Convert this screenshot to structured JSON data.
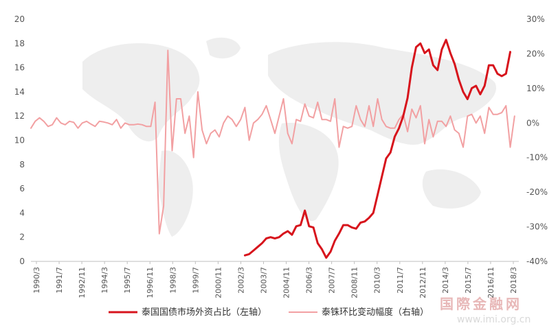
{
  "chart_data": {
    "type": "line",
    "title": "",
    "x_ticks": [
      "1990/3",
      "1991/7",
      "1992/11",
      "1994/3",
      "1995/7",
      "1996/11",
      "1998/3",
      "1999/7",
      "2000/11",
      "2002/3",
      "2003/7",
      "2004/11",
      "2006/3",
      "2007/7",
      "2008/11",
      "2010/3",
      "2011/7",
      "2012/11",
      "2014/3",
      "2015/7",
      "2016/11",
      "2018/3"
    ],
    "y_left": {
      "min": 0,
      "max": 20,
      "ticks": [
        "0",
        "2",
        "4",
        "6",
        "8",
        "10",
        "12",
        "14",
        "16",
        "18",
        "20"
      ]
    },
    "y_right": {
      "min": -40,
      "max": 30,
      "ticks": [
        "-40%",
        "-30%",
        "-20%",
        "-10%",
        "0%",
        "10%",
        "20%",
        "30%"
      ]
    },
    "series": [
      {
        "name": "泰国国债市场外资占比（左轴）",
        "axis": "left",
        "color": "#d7141c",
        "values": [
          [
            2002.75,
            0.5
          ],
          [
            2003.0,
            0.6
          ],
          [
            2003.25,
            0.9
          ],
          [
            2003.5,
            1.2
          ],
          [
            2003.75,
            1.5
          ],
          [
            2004.0,
            1.9
          ],
          [
            2004.25,
            2.0
          ],
          [
            2004.5,
            1.9
          ],
          [
            2004.75,
            2.0
          ],
          [
            2005.0,
            2.3
          ],
          [
            2005.25,
            2.5
          ],
          [
            2005.5,
            2.2
          ],
          [
            2005.75,
            2.9
          ],
          [
            2006.0,
            3.0
          ],
          [
            2006.25,
            4.2
          ],
          [
            2006.5,
            2.9
          ],
          [
            2006.75,
            2.8
          ],
          [
            2007.0,
            1.5
          ],
          [
            2007.25,
            1.0
          ],
          [
            2007.5,
            0.3
          ],
          [
            2007.75,
            0.8
          ],
          [
            2008.0,
            1.7
          ],
          [
            2008.25,
            2.3
          ],
          [
            2008.5,
            3.0
          ],
          [
            2008.75,
            3.0
          ],
          [
            2009.0,
            2.8
          ],
          [
            2009.25,
            2.7
          ],
          [
            2009.5,
            3.2
          ],
          [
            2009.75,
            3.3
          ],
          [
            2010.0,
            3.6
          ],
          [
            2010.25,
            4.0
          ],
          [
            2010.5,
            5.5
          ],
          [
            2010.75,
            7.0
          ],
          [
            2011.0,
            8.5
          ],
          [
            2011.25,
            9.0
          ],
          [
            2011.5,
            10.3
          ],
          [
            2011.75,
            11.0
          ],
          [
            2012.0,
            12.0
          ],
          [
            2012.25,
            13.5
          ],
          [
            2012.5,
            16.0
          ],
          [
            2012.75,
            17.7
          ],
          [
            2013.0,
            18.0
          ],
          [
            2013.25,
            17.2
          ],
          [
            2013.5,
            17.5
          ],
          [
            2013.75,
            16.2
          ],
          [
            2014.0,
            15.8
          ],
          [
            2014.25,
            17.5
          ],
          [
            2014.5,
            18.3
          ],
          [
            2014.75,
            17.2
          ],
          [
            2015.0,
            16.3
          ],
          [
            2015.25,
            15.0
          ],
          [
            2015.5,
            14.0
          ],
          [
            2015.75,
            13.4
          ],
          [
            2016.0,
            14.3
          ],
          [
            2016.25,
            14.5
          ],
          [
            2016.5,
            13.8
          ],
          [
            2016.75,
            14.5
          ],
          [
            2017.0,
            16.2
          ],
          [
            2017.25,
            16.2
          ],
          [
            2017.5,
            15.5
          ],
          [
            2017.75,
            15.3
          ],
          [
            2018.0,
            15.5
          ],
          [
            2018.25,
            17.3
          ]
        ]
      },
      {
        "name": "泰铢环比变动幅度（右轴）",
        "axis": "right",
        "color": "#f2a0a2",
        "values": [
          [
            1990.25,
            -1.5
          ],
          [
            1990.5,
            0.5
          ],
          [
            1990.75,
            1.5
          ],
          [
            1991.0,
            0.5
          ],
          [
            1991.25,
            -1.0
          ],
          [
            1991.5,
            -0.5
          ],
          [
            1991.75,
            1.5
          ],
          [
            1992.0,
            0.0
          ],
          [
            1992.25,
            -0.5
          ],
          [
            1992.5,
            0.5
          ],
          [
            1992.75,
            0.2
          ],
          [
            1993.0,
            -1.5
          ],
          [
            1993.25,
            0.0
          ],
          [
            1993.5,
            0.5
          ],
          [
            1993.75,
            -0.3
          ],
          [
            1994.0,
            -1.0
          ],
          [
            1994.25,
            0.5
          ],
          [
            1994.5,
            0.3
          ],
          [
            1994.75,
            0.0
          ],
          [
            1995.0,
            -0.5
          ],
          [
            1995.25,
            1.0
          ],
          [
            1995.5,
            -1.5
          ],
          [
            1995.75,
            0.0
          ],
          [
            1996.0,
            -0.5
          ],
          [
            1996.25,
            -0.5
          ],
          [
            1996.5,
            -0.3
          ],
          [
            1996.75,
            -0.5
          ],
          [
            1997.0,
            -1.0
          ],
          [
            1997.25,
            -1.0
          ],
          [
            1997.5,
            6.0
          ],
          [
            1997.75,
            -32.0
          ],
          [
            1998.0,
            -24.0
          ],
          [
            1998.25,
            21.0
          ],
          [
            1998.5,
            -8.0
          ],
          [
            1998.75,
            7.0
          ],
          [
            1999.0,
            7.0
          ],
          [
            1999.25,
            -3.0
          ],
          [
            1999.5,
            2.0
          ],
          [
            1999.75,
            -10.0
          ],
          [
            2000.0,
            9.0
          ],
          [
            2000.25,
            -2.0
          ],
          [
            2000.5,
            -6.0
          ],
          [
            2000.75,
            -3.0
          ],
          [
            2001.0,
            -2.0
          ],
          [
            2001.25,
            -4.0
          ],
          [
            2001.5,
            0.0
          ],
          [
            2001.75,
            2.0
          ],
          [
            2002.0,
            1.0
          ],
          [
            2002.25,
            -1.0
          ],
          [
            2002.5,
            1.0
          ],
          [
            2002.75,
            4.5
          ],
          [
            2003.0,
            -5.0
          ],
          [
            2003.25,
            0.0
          ],
          [
            2003.5,
            1.0
          ],
          [
            2003.75,
            2.5
          ],
          [
            2004.0,
            5.0
          ],
          [
            2004.25,
            1.0
          ],
          [
            2004.5,
            -3.0
          ],
          [
            2004.75,
            2.0
          ],
          [
            2005.0,
            7.0
          ],
          [
            2005.25,
            -3.0
          ],
          [
            2005.5,
            -6.0
          ],
          [
            2005.75,
            1.0
          ],
          [
            2006.0,
            0.5
          ],
          [
            2006.25,
            5.5
          ],
          [
            2006.5,
            2.0
          ],
          [
            2006.75,
            1.5
          ],
          [
            2007.0,
            6.0
          ],
          [
            2007.25,
            1.0
          ],
          [
            2007.5,
            1.0
          ],
          [
            2007.75,
            0.5
          ],
          [
            2008.0,
            7.0
          ],
          [
            2008.25,
            -7.0
          ],
          [
            2008.5,
            -1.0
          ],
          [
            2008.75,
            -1.5
          ],
          [
            2009.0,
            -1.0
          ],
          [
            2009.25,
            5.0
          ],
          [
            2009.5,
            1.0
          ],
          [
            2009.75,
            -1.0
          ],
          [
            2010.0,
            5.0
          ],
          [
            2010.25,
            -1.0
          ],
          [
            2010.5,
            7.0
          ],
          [
            2010.75,
            1.0
          ],
          [
            2011.0,
            -1.0
          ],
          [
            2011.25,
            -1.5
          ],
          [
            2011.5,
            -1.5
          ],
          [
            2011.75,
            1.0
          ],
          [
            2012.0,
            2.5
          ],
          [
            2012.25,
            -2.5
          ],
          [
            2012.5,
            4.0
          ],
          [
            2012.75,
            1.5
          ],
          [
            2013.0,
            5.0
          ],
          [
            2013.25,
            -6.0
          ],
          [
            2013.5,
            1.0
          ],
          [
            2013.75,
            -4.0
          ],
          [
            2014.0,
            0.5
          ],
          [
            2014.25,
            0.5
          ],
          [
            2014.5,
            -1.0
          ],
          [
            2014.75,
            2.0
          ],
          [
            2015.0,
            -2.0
          ],
          [
            2015.25,
            -3.0
          ],
          [
            2015.5,
            -7.0
          ],
          [
            2015.75,
            2.0
          ],
          [
            2016.0,
            2.5
          ],
          [
            2016.25,
            0.0
          ],
          [
            2016.5,
            2.0
          ],
          [
            2016.75,
            -3.0
          ],
          [
            2017.0,
            4.5
          ],
          [
            2017.25,
            2.5
          ],
          [
            2017.5,
            2.5
          ],
          [
            2017.75,
            3.0
          ],
          [
            2018.0,
            5.0
          ],
          [
            2018.25,
            -7.0
          ],
          [
            2018.5,
            2.0
          ]
        ]
      }
    ],
    "grid": false,
    "legend_position": "bottom"
  },
  "watermark": {
    "name": "国際金融网",
    "url": "www.imi.org.cn"
  }
}
